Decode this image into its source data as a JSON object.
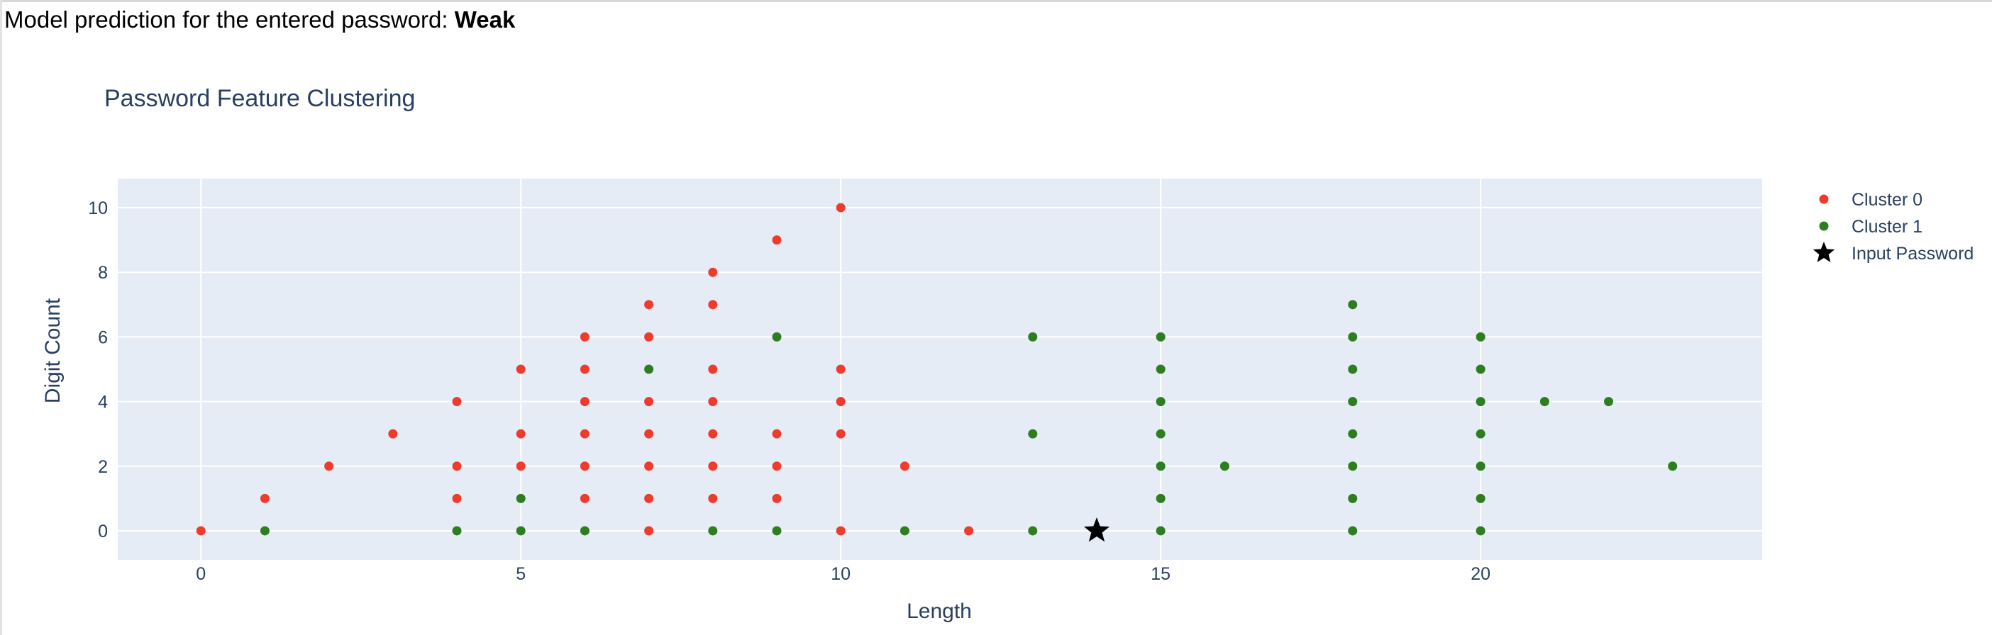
{
  "header": {
    "prediction_prefix": "Model prediction for the entered password: ",
    "prediction_value": "Weak"
  },
  "chart_data": {
    "type": "scatter",
    "title": "Password Feature Clustering",
    "xlabel": "Length",
    "ylabel": "Digit Count",
    "xlim": [
      -1.3,
      24.4
    ],
    "ylim": [
      -0.9,
      10.9
    ],
    "x_ticks": [
      0,
      5,
      10,
      15,
      20
    ],
    "y_ticks": [
      0,
      2,
      4,
      6,
      8,
      10
    ],
    "grid": true,
    "legend_position": "top-right",
    "plot_bg": "#e5ecf6",
    "series": [
      {
        "name": "Cluster 0",
        "color": "#ef3b2c",
        "marker": "circle",
        "points": [
          [
            0,
            0
          ],
          [
            1,
            1
          ],
          [
            2,
            2
          ],
          [
            3,
            3
          ],
          [
            4,
            1
          ],
          [
            4,
            2
          ],
          [
            4,
            4
          ],
          [
            5,
            2
          ],
          [
            5,
            3
          ],
          [
            5,
            5
          ],
          [
            6,
            1
          ],
          [
            6,
            2
          ],
          [
            6,
            3
          ],
          [
            6,
            4
          ],
          [
            6,
            5
          ],
          [
            6,
            6
          ],
          [
            7,
            0
          ],
          [
            7,
            1
          ],
          [
            7,
            2
          ],
          [
            7,
            3
          ],
          [
            7,
            4
          ],
          [
            7,
            6
          ],
          [
            7,
            7
          ],
          [
            8,
            1
          ],
          [
            8,
            2
          ],
          [
            8,
            3
          ],
          [
            8,
            4
          ],
          [
            8,
            5
          ],
          [
            8,
            7
          ],
          [
            8,
            8
          ],
          [
            9,
            1
          ],
          [
            9,
            2
          ],
          [
            9,
            3
          ],
          [
            9,
            9
          ],
          [
            10,
            0
          ],
          [
            10,
            3
          ],
          [
            10,
            4
          ],
          [
            10,
            5
          ],
          [
            10,
            10
          ],
          [
            11,
            2
          ],
          [
            12,
            0
          ]
        ]
      },
      {
        "name": "Cluster 1",
        "color": "#2e7d1e",
        "marker": "circle",
        "points": [
          [
            1,
            0
          ],
          [
            4,
            0
          ],
          [
            5,
            0
          ],
          [
            5,
            1
          ],
          [
            6,
            0
          ],
          [
            7,
            5
          ],
          [
            8,
            0
          ],
          [
            9,
            0
          ],
          [
            9,
            6
          ],
          [
            11,
            0
          ],
          [
            13,
            0
          ],
          [
            13,
            3
          ],
          [
            13,
            6
          ],
          [
            15,
            0
          ],
          [
            15,
            1
          ],
          [
            15,
            2
          ],
          [
            15,
            3
          ],
          [
            15,
            4
          ],
          [
            15,
            5
          ],
          [
            15,
            6
          ],
          [
            16,
            2
          ],
          [
            18,
            0
          ],
          [
            18,
            1
          ],
          [
            18,
            2
          ],
          [
            18,
            3
          ],
          [
            18,
            4
          ],
          [
            18,
            5
          ],
          [
            18,
            6
          ],
          [
            18,
            7
          ],
          [
            20,
            0
          ],
          [
            20,
            1
          ],
          [
            20,
            2
          ],
          [
            20,
            3
          ],
          [
            20,
            4
          ],
          [
            20,
            5
          ],
          [
            20,
            6
          ],
          [
            21,
            4
          ],
          [
            22,
            4
          ],
          [
            23,
            2
          ]
        ]
      },
      {
        "name": "Input Password",
        "color": "#000000",
        "marker": "star",
        "points": [
          [
            14,
            0
          ]
        ]
      }
    ]
  }
}
